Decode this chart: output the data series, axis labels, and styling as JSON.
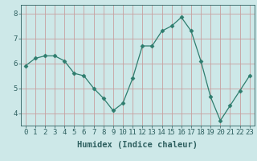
{
  "x": [
    0,
    1,
    2,
    3,
    4,
    5,
    6,
    7,
    8,
    9,
    10,
    11,
    12,
    13,
    14,
    15,
    16,
    17,
    18,
    19,
    20,
    21,
    22,
    23
  ],
  "y": [
    5.9,
    6.2,
    6.3,
    6.3,
    6.1,
    5.6,
    5.5,
    5.0,
    4.6,
    4.1,
    4.4,
    5.4,
    6.7,
    6.7,
    7.3,
    7.5,
    7.85,
    7.3,
    6.1,
    4.65,
    3.7,
    4.3,
    4.9,
    5.5
  ],
  "line_color": "#2e7d6e",
  "marker": "D",
  "marker_size": 2.5,
  "bg_color": "#cde8e8",
  "grid_color": "#c8a0a0",
  "xlabel": "Humidex (Indice chaleur)",
  "ylim": [
    3.5,
    8.35
  ],
  "xlim": [
    -0.5,
    23.5
  ],
  "yticks": [
    4,
    5,
    6,
    7,
    8
  ],
  "xticks": [
    0,
    1,
    2,
    3,
    4,
    5,
    6,
    7,
    8,
    9,
    10,
    11,
    12,
    13,
    14,
    15,
    16,
    17,
    18,
    19,
    20,
    21,
    22,
    23
  ],
  "tick_color": "#2e6060",
  "label_fontsize": 7.5,
  "tick_fontsize": 6.5
}
